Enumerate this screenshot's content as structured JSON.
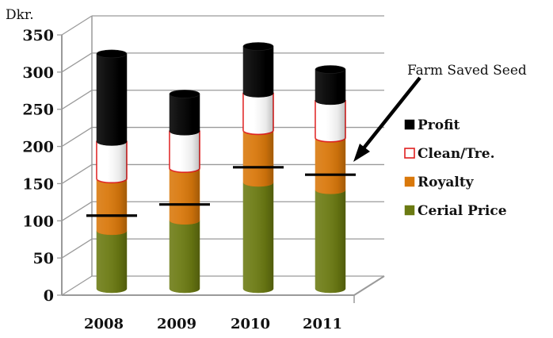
{
  "chart_data": {
    "type": "bar",
    "subtype": "stacked-3d-cylinder",
    "unit_label": "Dkr.",
    "categories": [
      "2008",
      "2009",
      "2010",
      "2011"
    ],
    "series": [
      {
        "name": "Cerial Price",
        "values": [
          78,
          92,
          143,
          133
        ],
        "color": "#6b7a12"
      },
      {
        "name": "Royalty",
        "values": [
          70,
          70,
          70,
          70
        ],
        "color": "#d9780b"
      },
      {
        "name": "Clean/Tre.",
        "values": [
          50,
          50,
          50,
          50
        ],
        "color": "#ffffff",
        "stroke": "#e02020"
      },
      {
        "name": "Profit",
        "values": [
          118,
          50,
          63,
          42
        ],
        "color": "#000000"
      }
    ],
    "farm_saved_seed": [
      107,
      122,
      172,
      162
    ],
    "yticks": [
      0,
      50,
      100,
      150,
      200,
      250,
      300,
      350
    ],
    "ylim": [
      0,
      350
    ],
    "grid": true,
    "legend_position": "right",
    "annotation": {
      "text": "Farm Saved Seed",
      "target": "2011"
    }
  }
}
